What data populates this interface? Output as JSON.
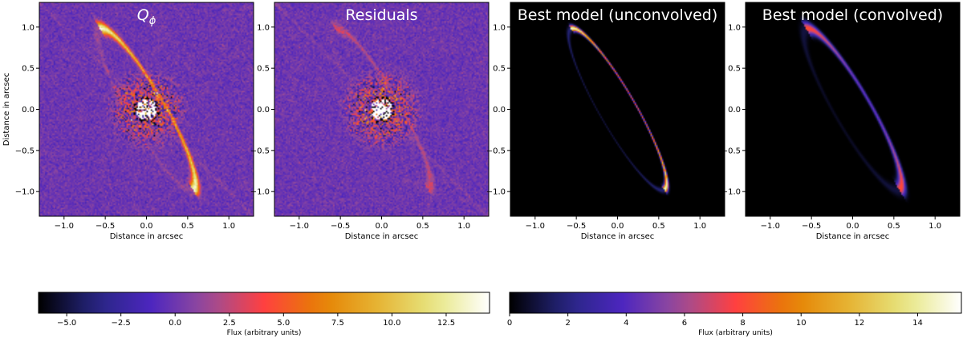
{
  "chart_data": {
    "type": "heatmap",
    "xlabel": "Distance in arcsec",
    "ylabel": "Distance in arcsec",
    "xlim": [
      -1.3,
      1.3
    ],
    "ylim": [
      -1.3,
      1.3
    ],
    "ticks": [
      -1.0,
      -0.5,
      0.0,
      0.5,
      1.0
    ],
    "tick_labels": [
      "−1.0",
      "−0.5",
      "0.0",
      "0.5",
      "1.0"
    ],
    "panels": [
      {
        "title": "Q",
        "title_sub": "ϕ",
        "kind": "data",
        "ring_strength": 1.0,
        "colorbar": 1,
        "show_ylabel": true
      },
      {
        "title": "Residuals",
        "title_sub": "",
        "kind": "data",
        "ring_strength": 0.22,
        "colorbar": 1,
        "show_ylabel": false
      },
      {
        "title": "Best model (unconvolved)",
        "title_sub": "",
        "kind": "model",
        "blur": 0.025,
        "colorbar": 2,
        "show_ylabel": false
      },
      {
        "title": "Best model (convolved)",
        "title_sub": "",
        "kind": "model",
        "blur": 0.055,
        "colorbar": 2,
        "show_ylabel": false
      }
    ],
    "ring": {
      "center": [
        0.0,
        0.0
      ],
      "semi_major_arcsec": 1.13,
      "semi_minor_arcsec": 0.22,
      "position_angle_deg": 120,
      "bright_side": "east",
      "bright_end_points": [
        [
          -0.5,
          0.93
        ],
        [
          0.52,
          -0.95
        ]
      ]
    },
    "colorbars": [
      {
        "label": "Flux (arbitrary units)",
        "range": [
          -6.3,
          14.5
        ],
        "ticks": [
          -5.0,
          -2.5,
          0.0,
          2.5,
          5.0,
          7.5,
          10.0,
          12.5
        ],
        "tick_labels": [
          "−5.0",
          "−2.5",
          "0.0",
          "2.5",
          "5.0",
          "7.5",
          "10.0",
          "12.5"
        ]
      },
      {
        "label": "Flux (arbitrary units)",
        "range": [
          0,
          15.5
        ],
        "ticks": [
          0,
          2,
          4,
          6,
          8,
          10,
          12,
          14
        ],
        "tick_labels": [
          "0",
          "2",
          "4",
          "6",
          "8",
          "10",
          "12",
          "14"
        ]
      }
    ],
    "colormap": "CMRmap",
    "colormap_stops": [
      "#000000",
      "#262680",
      "#4d26bf",
      "#994d99",
      "#ff4040",
      "#e68000",
      "#e6b333",
      "#e6e680",
      "#ffffff"
    ]
  }
}
